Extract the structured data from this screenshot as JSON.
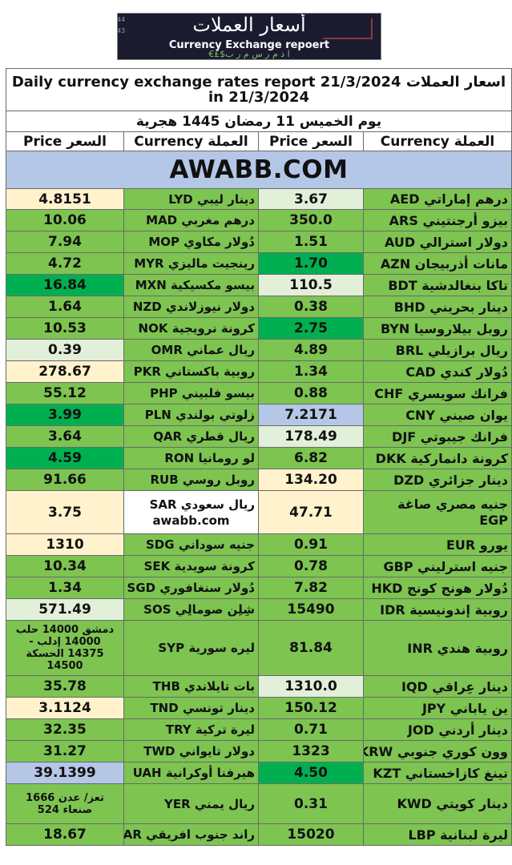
{
  "logo": {
    "arabic_title": "أسعار العملات",
    "english_title": "Currency Exchange repoert",
    "subtitle": "€£$ا د م ر س م ر ب",
    "counter_top": "44",
    "counter_bottom": "43"
  },
  "header": {
    "title_line1": "Daily currency exchange rates report 21/3/2024 اسعار العملات",
    "title_line2": "in 21/3/2024",
    "hijri_date": "يوم الخميس 11 رمضان 1445 هجرية",
    "col_price": "Price السعر",
    "col_currency": "Currency العملة",
    "banner": "AWABB.COM"
  },
  "rows": [
    {
      "l_price": "4.8151",
      "l_ar": "دينار ليبي",
      "l_code": "LYD",
      "r_price": "3.67",
      "r_ar": "درهم إماراتي",
      "r_code": "AED",
      "lp": "c",
      "lc": "g",
      "rp": "pg",
      "rc": "g"
    },
    {
      "l_price": "10.06",
      "l_ar": "درهم مغربي",
      "l_code": "MAD",
      "r_price": "350.0",
      "r_ar": "بيزو أرجنتيني",
      "r_code": "ARS",
      "lp": "g",
      "lc": "g",
      "rp": "g",
      "rc": "g"
    },
    {
      "l_price": "7.94",
      "l_ar": "دُولار مكاوي",
      "l_code": "MOP",
      "r_price": "1.51",
      "r_ar": "دولار استرالي",
      "r_code": "AUD",
      "lp": "g",
      "lc": "g",
      "rp": "g",
      "rc": "g"
    },
    {
      "l_price": "4.72",
      "l_ar": "رينجيت ماليزي",
      "l_code": "MYR",
      "r_price": "1.70",
      "r_ar": "مانات أذربيجان",
      "r_code": "AZN",
      "lp": "g",
      "lc": "g",
      "rp": "dg",
      "rc": "g"
    },
    {
      "l_price": "16.84",
      "l_ar": "بيسو مكسيكية",
      "l_code": "MXN",
      "r_price": "110.5",
      "r_ar": "تاكا بنغالدشية",
      "r_code": "BDT",
      "lp": "dg",
      "lc": "g",
      "rp": "pg",
      "rc": "g"
    },
    {
      "l_price": "1.64",
      "l_ar": "دولار نيوزلاندي",
      "l_code": "NZD",
      "r_price": "0.38",
      "r_ar": "دينار بحريني",
      "r_code": "BHD",
      "lp": "g",
      "lc": "g",
      "rp": "g",
      "rc": "g"
    },
    {
      "l_price": "10.53",
      "l_ar": "كرونة نرويجية",
      "l_code": "NOK",
      "r_price": "2.75",
      "r_ar": "روبل بيلاروسيا",
      "r_code": "BYN",
      "lp": "g",
      "lc": "g",
      "rp": "dg",
      "rc": "g"
    },
    {
      "l_price": "0.39",
      "l_ar": "ريال عماني",
      "l_code": "OMR",
      "r_price": "4.89",
      "r_ar": "ريال برازيلي",
      "r_code": "BRL",
      "lp": "pg",
      "lc": "g",
      "rp": "g",
      "rc": "g"
    },
    {
      "l_price": "278.67",
      "l_ar": "روبية باكستاني",
      "l_code": "PKR",
      "r_price": "1.34",
      "r_ar": "دُولار كندي",
      "r_code": "CAD",
      "lp": "c",
      "lc": "g",
      "rp": "g",
      "rc": "g"
    },
    {
      "l_price": "55.12",
      "l_ar": "بيسو فلبيني",
      "l_code": "PHP",
      "r_price": "0.88",
      "r_ar": "فرانك سويسري",
      "r_code": "CHF",
      "lp": "g",
      "lc": "g",
      "rp": "g",
      "rc": "g"
    },
    {
      "l_price": "3.99",
      "l_ar": "زلوتي بولندي",
      "l_code": "PLN",
      "r_price": "7.2171",
      "r_ar": "يوان صيني",
      "r_code": "CNY",
      "lp": "dg",
      "lc": "g",
      "rp": "bl",
      "rc": "g"
    },
    {
      "l_price": "3.64",
      "l_ar": "ريال قطري",
      "l_code": "QAR",
      "r_price": "178.49",
      "r_ar": "فرانك جيبوتي",
      "r_code": "DJF",
      "lp": "g",
      "lc": "g",
      "rp": "pg",
      "rc": "g"
    },
    {
      "l_price": "4.59",
      "l_ar": "لو رومانيا",
      "l_code": "RON",
      "r_price": "6.82",
      "r_ar": "كرونة دانماركية",
      "r_code": "DKK",
      "lp": "dg",
      "lc": "g",
      "rp": "g",
      "rc": "g"
    },
    {
      "l_price": "91.66",
      "l_ar": "روبل روسي",
      "l_code": "RUB",
      "r_price": "134.20",
      "r_ar": "دينار جزائري",
      "r_code": "DZD",
      "lp": "g",
      "lc": "g",
      "rp": "c",
      "rc": "g"
    },
    {
      "l_price": "3.75",
      "l_ar": "ريال سعودي",
      "l_code": "SAR",
      "l_extra": "awabb.com",
      "r_price": "47.71",
      "r_ar": "جنيه مصري صاغة",
      "r_code": "EGP",
      "lp": "c",
      "lc": "w",
      "rp": "c",
      "rc": "g",
      "tall": true
    },
    {
      "l_price": "1310",
      "l_ar": "جنيه سوداني",
      "l_code": "SDG",
      "r_price": "0.91",
      "r_ar": "يورو",
      "r_code": "EUR",
      "lp": "c",
      "lc": "g",
      "rp": "g",
      "rc": "g"
    },
    {
      "l_price": "10.34",
      "l_ar": "كرونة سويدية",
      "l_code": "SEK",
      "r_price": "0.78",
      "r_ar": "جنيه استرليني",
      "r_code": "GBP",
      "lp": "g",
      "lc": "g",
      "rp": "g",
      "rc": "g"
    },
    {
      "l_price": "1.34",
      "l_ar": "دُولار سنغافوري",
      "l_code": "SGD",
      "r_price": "7.82",
      "r_ar": "دُولار هونج كونج",
      "r_code": "HKD",
      "lp": "g",
      "lc": "g",
      "rp": "g",
      "rc": "g"
    },
    {
      "l_price": "571.49",
      "l_ar": "شِلِن صومالِي",
      "l_code": "SOS",
      "r_price": "15490",
      "r_ar": "روبية إندونيسية",
      "r_code": "IDR",
      "lp": "pg",
      "lc": "g",
      "rp": "g",
      "rc": "g"
    },
    {
      "l_price": "دمشق 14000 حلب 14000 إدلب - 14375 الحسكة 14500",
      "l_ar": "ليره سورية",
      "l_code": "SYP",
      "r_price": "81.84",
      "r_ar": "روبية هندي",
      "r_code": "INR",
      "lp": "g",
      "lc": "g",
      "rp": "g",
      "rc": "g",
      "syr": true
    },
    {
      "l_price": "35.78",
      "l_ar": "بات تايلاندي",
      "l_code": "THB",
      "r_price": "1310.0",
      "r_ar": "دينار عِراقي",
      "r_code": "IQD",
      "lp": "g",
      "lc": "g",
      "rp": "pg",
      "rc": "g"
    },
    {
      "l_price": "3.1124",
      "l_ar": "دينار تونسي",
      "l_code": "TND",
      "r_price": "150.12",
      "r_ar": "ين ياباني",
      "r_code": "JPY",
      "lp": "c",
      "lc": "g",
      "rp": "g",
      "rc": "g"
    },
    {
      "l_price": "32.35",
      "l_ar": "ليرة تركية",
      "l_code": "TRY",
      "r_price": "0.71",
      "r_ar": "دينار أردني",
      "r_code": "JOD",
      "lp": "g",
      "lc": "g",
      "rp": "g",
      "rc": "g"
    },
    {
      "l_price": "31.27",
      "l_ar": "دولار تايواني",
      "l_code": "TWD",
      "r_price": "1323",
      "r_ar": "وون كوري جنوبي",
      "r_code": "KRW",
      "lp": "g",
      "lc": "g",
      "rp": "g",
      "rc": "g"
    },
    {
      "l_price": "39.1399",
      "l_ar": "هيرفنا أوكرانية",
      "l_code": "UAH",
      "r_price": "4.50",
      "r_ar": "تينغ كازاخستاني",
      "r_code": "KZT",
      "lp": "bl",
      "lc": "g",
      "rp": "dg",
      "rc": "g"
    },
    {
      "l_price": "تعز/ عدن 1666 صنعاء 524",
      "l_ar": "ريال يمني",
      "l_code": "YER",
      "r_price": "0.31",
      "r_ar": "دينار كويتي",
      "r_code": "KWD",
      "lp": "g",
      "lc": "g",
      "rp": "g",
      "rc": "g",
      "yem": true
    },
    {
      "l_price": "18.67",
      "l_ar": "راند جنوب افريقي",
      "l_code": "ZAR",
      "r_price": "15020",
      "r_ar": "ليرة لبنانية",
      "r_code": "LBP",
      "lp": "g",
      "lc": "g",
      "rp": "g",
      "rc": "g"
    }
  ]
}
